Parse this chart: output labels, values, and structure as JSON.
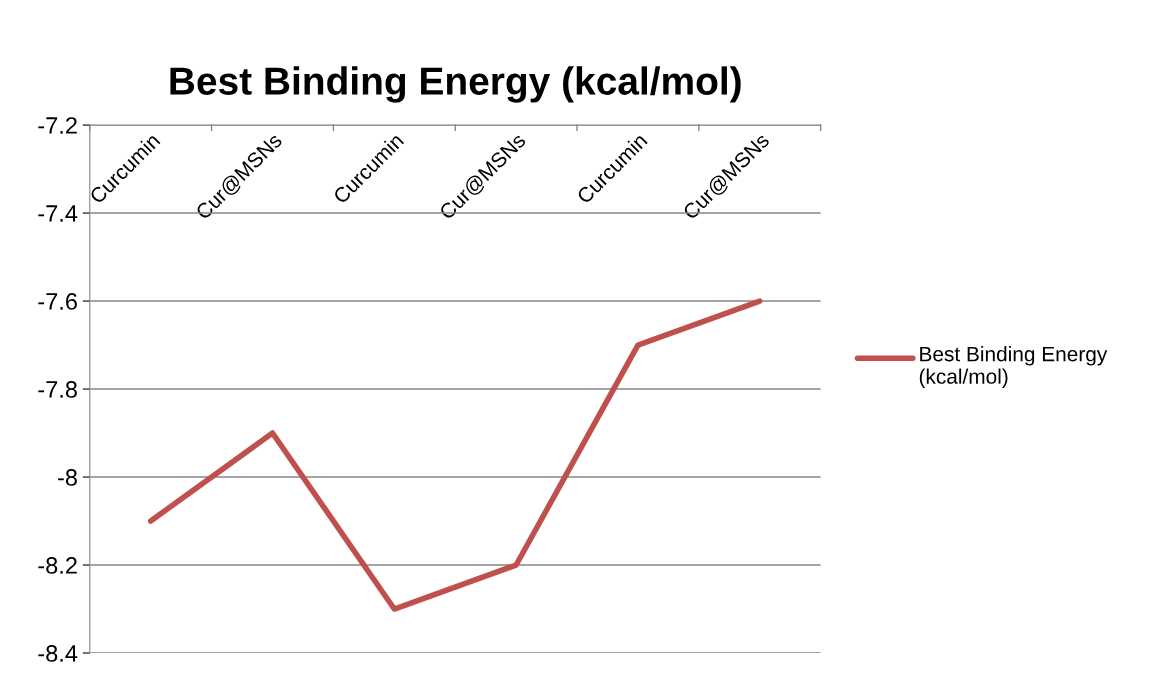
{
  "chart_data": {
    "type": "line",
    "title": "Best Binding Energy (kcal/mol)",
    "categories": [
      "Curcumin",
      "Cur@MSNs",
      "Curcumin",
      "Cur@MSNs",
      "Curcumin",
      "Cur@MSNs"
    ],
    "series": [
      {
        "name": "Best Binding Energy (kcal/mol)",
        "color": "#c0504d",
        "values": [
          -8.1,
          -7.9,
          -8.3,
          -8.2,
          -7.7,
          -7.6
        ]
      }
    ],
    "ylim": [
      -8.4,
      -7.2
    ],
    "yticks": [
      -8.4,
      -8.2,
      -8,
      -7.8,
      -7.6,
      -7.4,
      -7.2
    ],
    "grid": "y",
    "legend": "right",
    "marker": "none",
    "line_style": "solid"
  }
}
